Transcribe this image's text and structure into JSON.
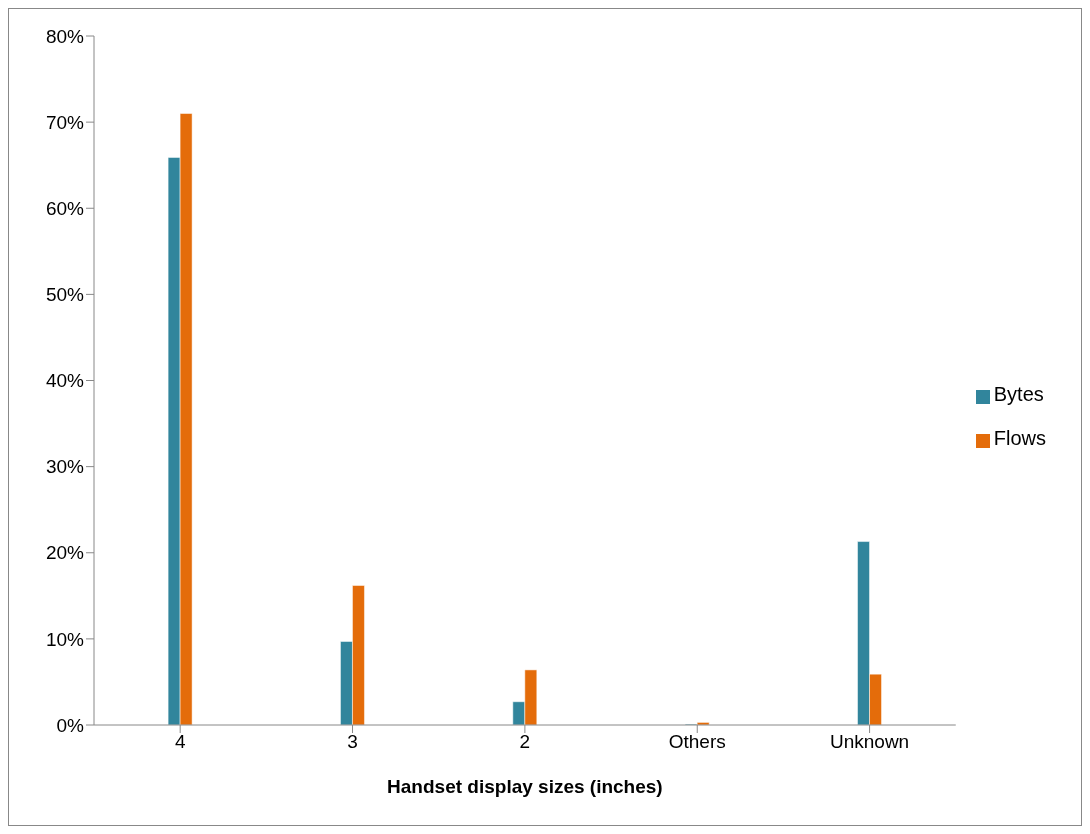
{
  "chart_data": {
    "type": "bar",
    "xlabel": "Handset display sizes (inches)",
    "categories": [
      "4",
      "3",
      "2",
      "Others",
      "Unknown"
    ],
    "series": [
      {
        "name": "Bytes",
        "color": "#31859c",
        "values": [
          65.9,
          9.7,
          2.7,
          0.1,
          21.3
        ]
      },
      {
        "name": "Flows",
        "color": "#e46c0a",
        "values": [
          71.0,
          16.2,
          6.4,
          0.3,
          5.9
        ]
      }
    ],
    "ylim": [
      0,
      80
    ],
    "yticks": [
      {
        "value": 0,
        "label": "0%"
      },
      {
        "value": 10,
        "label": "10%"
      },
      {
        "value": 20,
        "label": "20%"
      },
      {
        "value": 30,
        "label": "30%"
      },
      {
        "value": 40,
        "label": "40%"
      },
      {
        "value": 50,
        "label": "50%"
      },
      {
        "value": 60,
        "label": "60%"
      },
      {
        "value": 70,
        "label": "70%"
      },
      {
        "value": 80,
        "label": "80%"
      }
    ],
    "grid": false,
    "legend": "right"
  }
}
